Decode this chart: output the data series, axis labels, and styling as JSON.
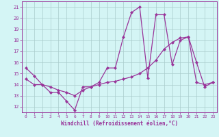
{
  "x_values": [
    0,
    1,
    2,
    3,
    4,
    5,
    6,
    7,
    8,
    9,
    10,
    11,
    12,
    13,
    14,
    15,
    16,
    17,
    18,
    19,
    20,
    21,
    22,
    23
  ],
  "line1_y": [
    15.5,
    14.8,
    14.0,
    13.3,
    13.3,
    12.5,
    11.7,
    13.8,
    13.8,
    14.2,
    15.5,
    15.5,
    18.3,
    20.5,
    21.0,
    14.6,
    20.3,
    20.3,
    15.8,
    18.0,
    18.3,
    16.0,
    13.8,
    14.2
  ],
  "line2_y": [
    14.5,
    14.0,
    14.0,
    13.8,
    13.5,
    13.3,
    13.0,
    13.5,
    13.8,
    14.0,
    14.2,
    14.3,
    14.5,
    14.7,
    15.0,
    15.5,
    16.2,
    17.2,
    17.8,
    18.2,
    18.3,
    14.2,
    14.0,
    14.2
  ],
  "line_color": "#993399",
  "bg_color": "#d4f5f5",
  "grid_color": "#aacccc",
  "xlabel": "Windchill (Refroidissement éolien,°C)",
  "yticks": [
    12,
    13,
    14,
    15,
    16,
    17,
    18,
    19,
    20,
    21
  ],
  "xlim": [
    -0.5,
    23.5
  ],
  "ylim": [
    11.5,
    21.5
  ],
  "xticks": [
    0,
    1,
    2,
    3,
    4,
    5,
    6,
    7,
    8,
    9,
    10,
    11,
    12,
    13,
    14,
    15,
    16,
    17,
    18,
    19,
    20,
    21,
    22,
    23
  ]
}
